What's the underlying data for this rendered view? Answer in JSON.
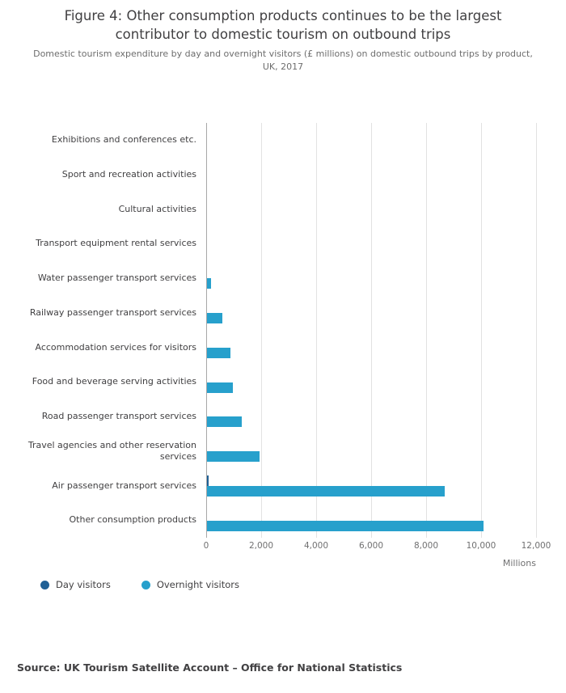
{
  "figure": {
    "title": "Figure 4: Other consumption products continues to be the largest contributor to domestic tourism on outbound trips",
    "subtitle": "Domestic tourism expenditure by day and overnight visitors (£ millions) on domestic outbound trips by product, UK, 2017",
    "source": "Source: UK Tourism Satellite Account – Office for National Statistics"
  },
  "chart_data": {
    "type": "bar",
    "orientation": "horizontal",
    "title": "Figure 4: Other consumption products continues to be the largest contributor to domestic tourism on outbound trips",
    "subtitle": "Domestic tourism expenditure by day and overnight visitors (£ millions) on domestic outbound trips by product, UK, 2017",
    "categories": [
      "Exhibitions and conferences etc.",
      "Sport and recreation activities",
      "Cultural activities",
      "Transport equipment rental services",
      "Water passenger transport services",
      "Railway passenger transport services",
      "Accommodation services for visitors",
      "Food and beverage serving activities",
      "Road passenger transport services",
      "Travel agencies and other reservation services",
      "Air passenger transport services",
      "Other consumption products"
    ],
    "series": [
      {
        "name": "Day visitors",
        "color": "#206095",
        "values": [
          0,
          0,
          0,
          0,
          0,
          0,
          0,
          0,
          0,
          0,
          50,
          0
        ]
      },
      {
        "name": "Overnight visitors",
        "color": "#27a0cc",
        "values": [
          0,
          0,
          0,
          0,
          150,
          550,
          850,
          950,
          1250,
          1900,
          8650,
          10050
        ]
      }
    ],
    "xlim": [
      0,
      12000
    ],
    "x_ticks": [
      0,
      2000,
      4000,
      6000,
      8000,
      10000,
      12000
    ],
    "x_tick_labels": [
      "0",
      "2,000",
      "4,000",
      "6,000",
      "8,000",
      "10,000",
      "12,000"
    ],
    "xlabel": "Millions",
    "grid": true,
    "legend_position": "bottom"
  }
}
